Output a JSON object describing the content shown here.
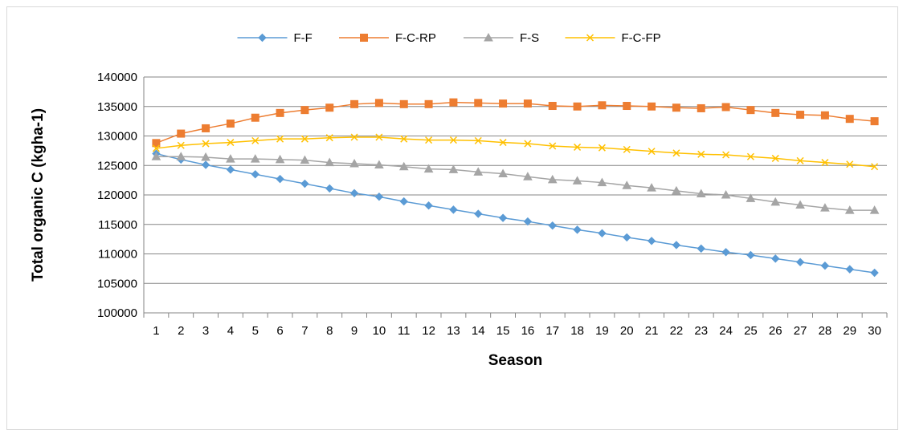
{
  "chart_data": {
    "type": "line",
    "title": "",
    "xlabel": "Season",
    "ylabel": "Total organic C (kgha-1)",
    "ylim": [
      100000,
      140000
    ],
    "ytick_step": 5000,
    "grid": true,
    "legend_position": "top",
    "x": [
      1,
      2,
      3,
      4,
      5,
      6,
      7,
      8,
      9,
      10,
      11,
      12,
      13,
      14,
      15,
      16,
      17,
      18,
      19,
      20,
      21,
      22,
      23,
      24,
      25,
      26,
      27,
      28,
      29,
      30
    ],
    "series": [
      {
        "name": "F-F",
        "color": "#5b9bd5",
        "marker": "diamond",
        "values": [
          127000,
          126000,
          125100,
          124300,
          123500,
          122700,
          121900,
          121100,
          120300,
          119700,
          118900,
          118200,
          117500,
          116800,
          116100,
          115500,
          114800,
          114100,
          113500,
          112800,
          112200,
          111500,
          110900,
          110300,
          109800,
          109200,
          108600,
          108000,
          107400,
          106800
        ]
      },
      {
        "name": "F-C-RP",
        "color": "#ed7d31",
        "marker": "square",
        "values": [
          128800,
          130400,
          131300,
          132100,
          133100,
          133900,
          134400,
          134800,
          135400,
          135600,
          135400,
          135400,
          135700,
          135600,
          135500,
          135500,
          135100,
          135000,
          135200,
          135100,
          135000,
          134800,
          134700,
          134900,
          134400,
          133900,
          133600,
          133500,
          132900,
          132500
        ]
      },
      {
        "name": "F-S",
        "color": "#a5a5a5",
        "marker": "triangle",
        "values": [
          126500,
          126500,
          126400,
          126100,
          126100,
          126000,
          125900,
          125500,
          125300,
          125100,
          124800,
          124400,
          124300,
          123900,
          123600,
          123100,
          122600,
          122400,
          122100,
          121600,
          121200,
          120700,
          120200,
          120000,
          119400,
          118800,
          118300,
          117800,
          117400,
          117400
        ]
      },
      {
        "name": "F-C-FP",
        "color": "#ffc000",
        "marker": "x",
        "values": [
          127900,
          128400,
          128700,
          128900,
          129200,
          129500,
          129500,
          129700,
          129800,
          129800,
          129500,
          129300,
          129300,
          129200,
          128900,
          128700,
          128300,
          128100,
          128000,
          127700,
          127400,
          127100,
          126900,
          126800,
          126500,
          126200,
          125800,
          125500,
          125200,
          124800
        ]
      }
    ]
  }
}
